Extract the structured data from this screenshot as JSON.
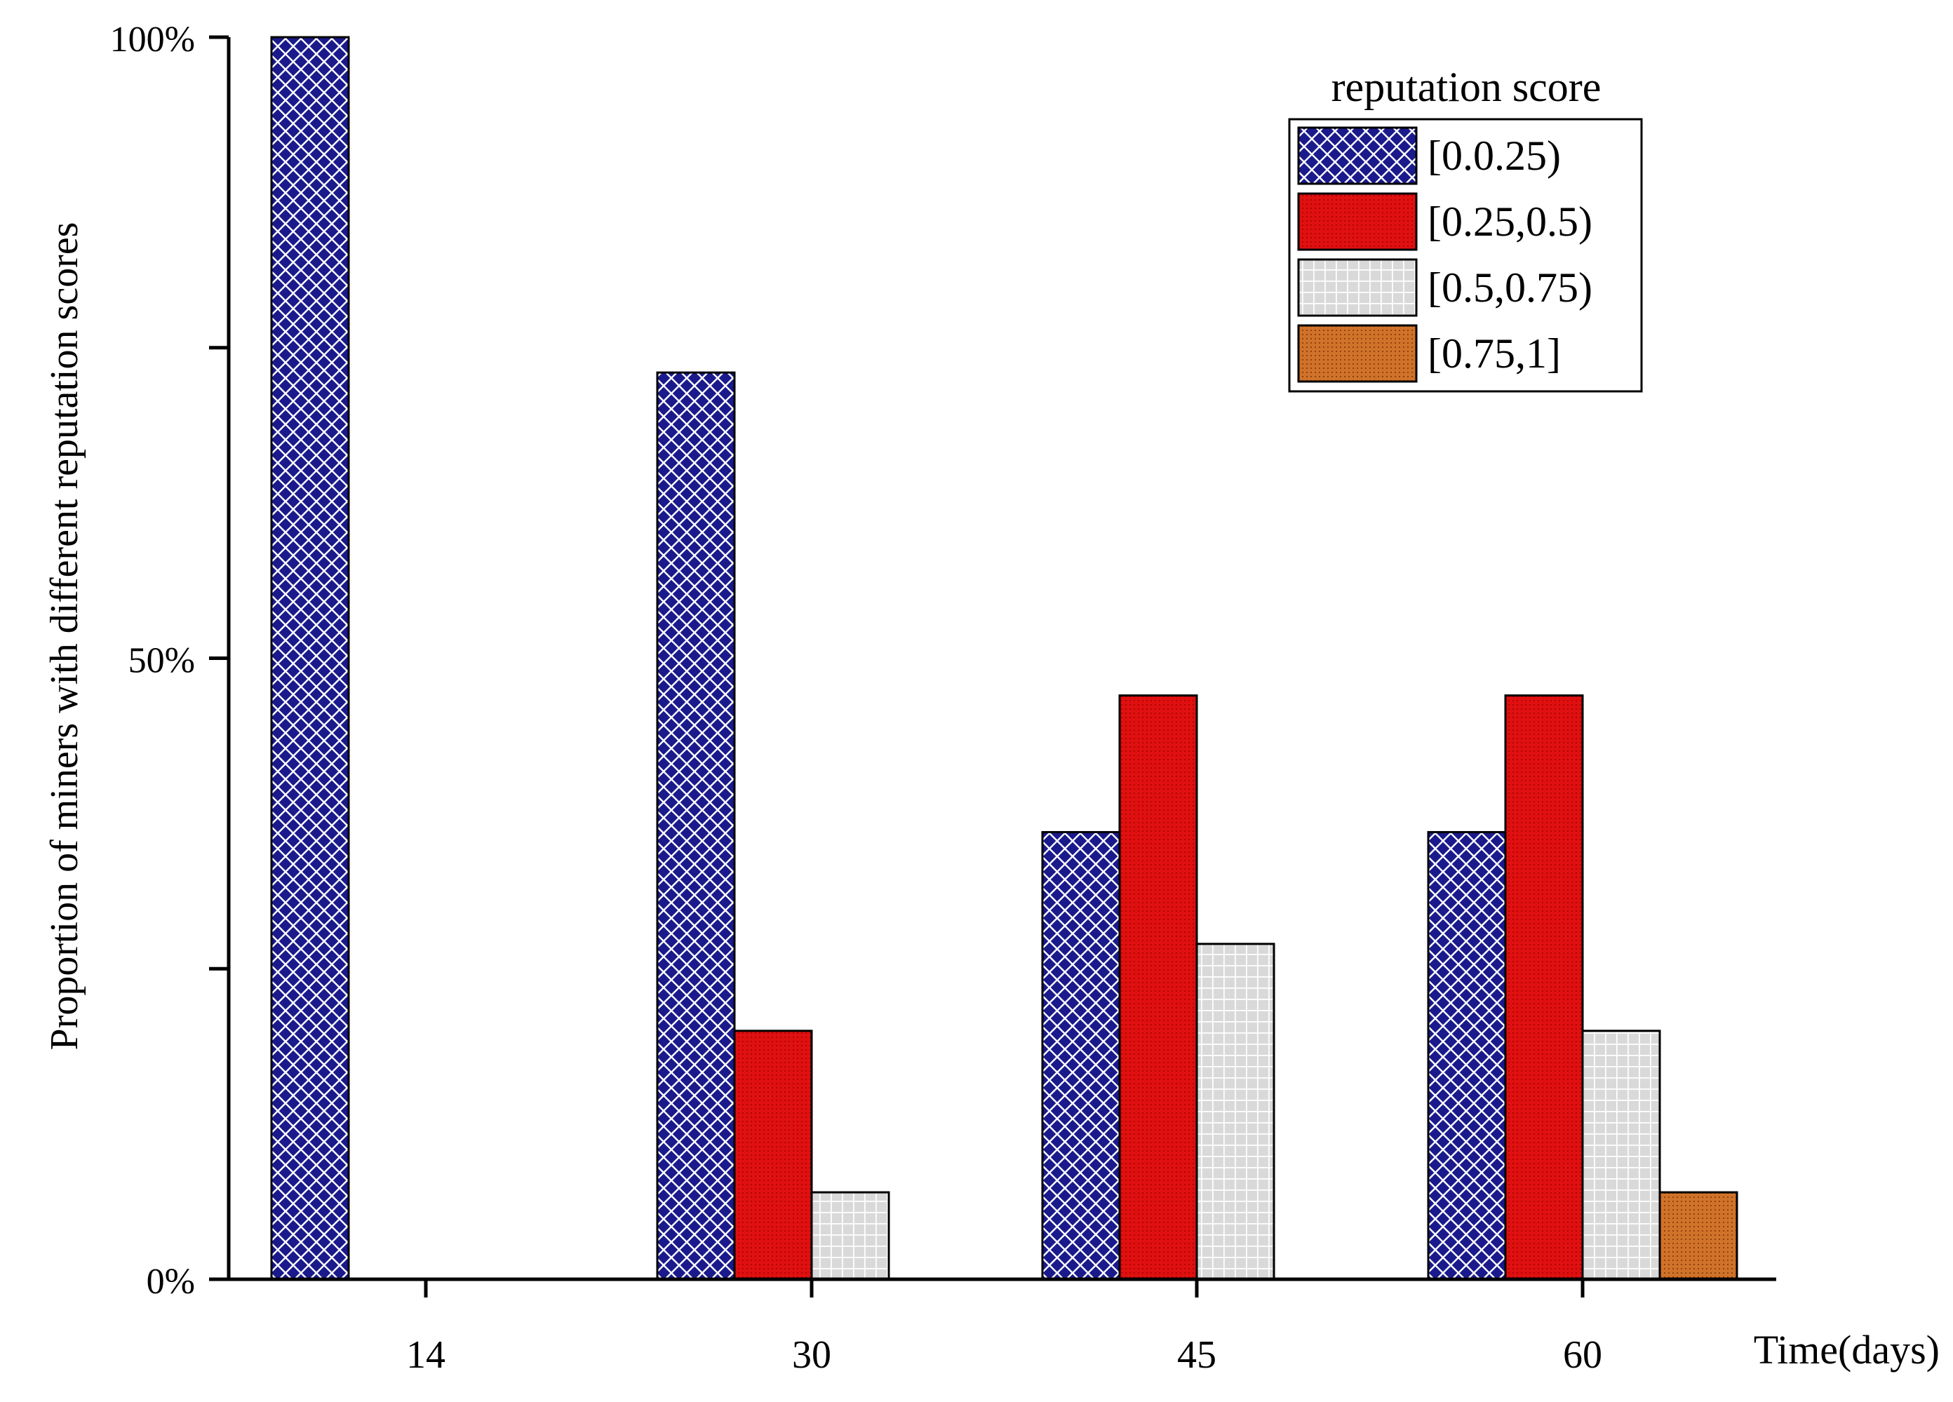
{
  "chart_data": {
    "type": "bar",
    "title": "",
    "xlabel": "Time(days)",
    "ylabel": "Proportion of miners with different reputation scores",
    "ylim": [
      0,
      1
    ],
    "y_ticks": [
      {
        "value": 0,
        "label": "0%"
      },
      {
        "value": 0.25,
        "label": ""
      },
      {
        "value": 0.5,
        "label": "50%"
      },
      {
        "value": 0.75,
        "label": ""
      },
      {
        "value": 1,
        "label": "100%"
      }
    ],
    "categories": [
      "14",
      "30",
      "45",
      "60"
    ],
    "series": [
      {
        "name": "[0.0.25)",
        "color": "#1a1a8c",
        "pattern": "crosshatch",
        "values": [
          1.0,
          0.73,
          0.36,
          0.36
        ]
      },
      {
        "name": "[0.25,0.5)",
        "color": "#e01010",
        "pattern": "dots",
        "values": [
          0.0,
          0.2,
          0.47,
          0.47
        ]
      },
      {
        "name": "[0.5,0.75)",
        "color": "#d4d4d4",
        "pattern": "grid",
        "values": [
          0.0,
          0.07,
          0.27,
          0.2
        ]
      },
      {
        "name": "[0.75,1]",
        "color": "#cc6f1e",
        "pattern": "dots",
        "values": [
          0.0,
          0.0,
          0.0,
          0.07
        ]
      }
    ],
    "legend": {
      "title": "reputation score",
      "position": "top-right"
    },
    "grid": false
  }
}
